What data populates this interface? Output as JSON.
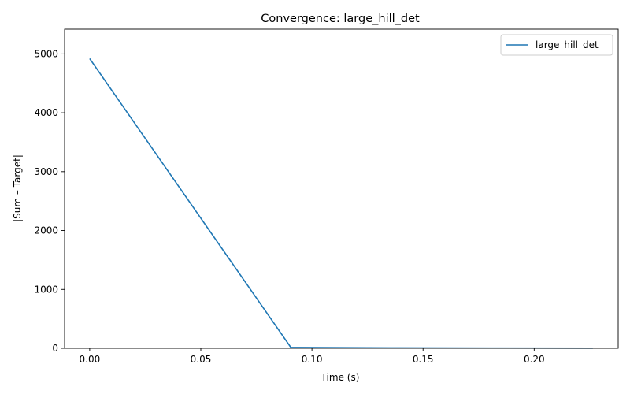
{
  "chart_data": {
    "type": "line",
    "title": "Convergence: large_hill_det",
    "xlabel": "Time (s)",
    "ylabel": "|Sum – Target|",
    "xlim": [
      -0.0113,
      0.2378
    ],
    "ylim": [
      0,
      5420
    ],
    "xticks": [
      0.0,
      0.05,
      0.1,
      0.15,
      0.2
    ],
    "xtick_labels": [
      "0.00",
      "0.05",
      "0.10",
      "0.15",
      "0.20"
    ],
    "yticks": [
      0,
      1000,
      2000,
      3000,
      4000,
      5000
    ],
    "ytick_labels": [
      "0",
      "1000",
      "2000",
      "3000",
      "4000",
      "5000"
    ],
    "grid": false,
    "legend_position": "top-right",
    "series": [
      {
        "name": "large_hill_det",
        "color": "#1f77b4",
        "x": [
          0.0,
          0.0905,
          0.1356,
          0.1808,
          0.2264
        ],
        "y": [
          4920,
          15,
          8,
          4,
          2
        ]
      }
    ]
  }
}
